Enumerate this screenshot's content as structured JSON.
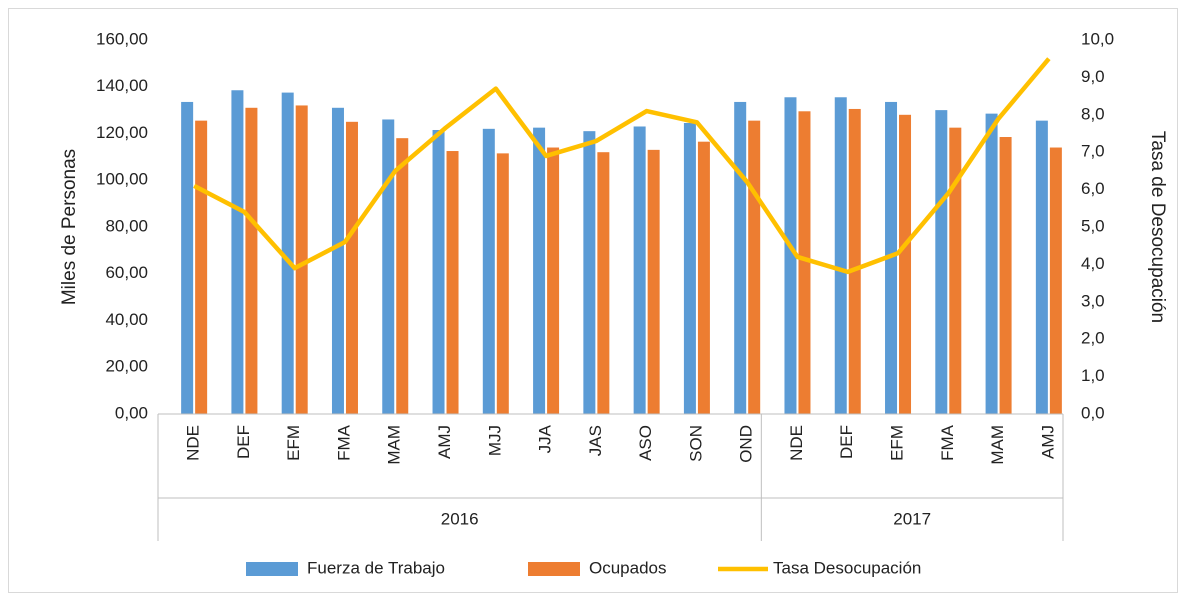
{
  "chart_data": {
    "type": "bar-line",
    "y_label": "Miles de Personas",
    "y2_label": "Tasa de Desocupación",
    "groups": [
      {
        "name": "2016",
        "categories": [
          "NDE",
          "DEF",
          "EFM",
          "FMA",
          "MAM",
          "AMJ",
          "MJJ",
          "JJA",
          "JAS",
          "ASO",
          "SON",
          "OND"
        ]
      },
      {
        "name": "2017",
        "categories": [
          "NDE",
          "DEF",
          "EFM",
          "FMA",
          "MAM",
          "AMJ"
        ]
      }
    ],
    "series": [
      {
        "name": "Fuerza de Trabajo",
        "type": "bar",
        "color": "#5b9bd5",
        "values": [
          133.5,
          138.5,
          137.5,
          131,
          126,
          121.5,
          122,
          122.5,
          121,
          123,
          124.5,
          133.5,
          135.5,
          135.5,
          133.5,
          130,
          128.5,
          125.5
        ]
      },
      {
        "name": "Ocupados",
        "type": "bar",
        "color": "#ed7d31",
        "values": [
          125.5,
          131,
          132,
          125,
          118,
          112.5,
          111.5,
          114,
          112,
          113,
          116.5,
          125.5,
          129.5,
          130.5,
          128,
          122.5,
          118.5,
          114
        ]
      },
      {
        "name": "Tasa Desocupación",
        "type": "line",
        "axis": "y2",
        "color": "#ffc000",
        "values": [
          6.1,
          5.4,
          3.9,
          4.6,
          6.5,
          7.65,
          8.7,
          6.9,
          7.3,
          8.1,
          7.8,
          6.2,
          4.2,
          3.8,
          4.3,
          5.9,
          7.9,
          9.5
        ]
      }
    ],
    "ylim": [
      0,
      160
    ],
    "yticks": [
      {
        "value": 0,
        "label": "0,00"
      },
      {
        "value": 20,
        "label": "20,00"
      },
      {
        "value": 40,
        "label": "40,00"
      },
      {
        "value": 60,
        "label": "60,00"
      },
      {
        "value": 80,
        "label": "80,00"
      },
      {
        "value": 100,
        "label": "100,00"
      },
      {
        "value": 120,
        "label": "120,00"
      },
      {
        "value": 140,
        "label": "140,00"
      },
      {
        "value": 160,
        "label": "160,00"
      }
    ],
    "y2lim": [
      0,
      10
    ],
    "y2ticks": [
      {
        "value": 0,
        "label": "0,0"
      },
      {
        "value": 1,
        "label": "1,0"
      },
      {
        "value": 2,
        "label": "2,0"
      },
      {
        "value": 3,
        "label": "3,0"
      },
      {
        "value": 4,
        "label": "4,0"
      },
      {
        "value": 5,
        "label": "5,0"
      },
      {
        "value": 6,
        "label": "6,0"
      },
      {
        "value": 7,
        "label": "7,0"
      },
      {
        "value": 8,
        "label": "8,0"
      },
      {
        "value": 9,
        "label": "9,0"
      },
      {
        "value": 10,
        "label": "10,0"
      }
    ],
    "legend": "bottom"
  }
}
